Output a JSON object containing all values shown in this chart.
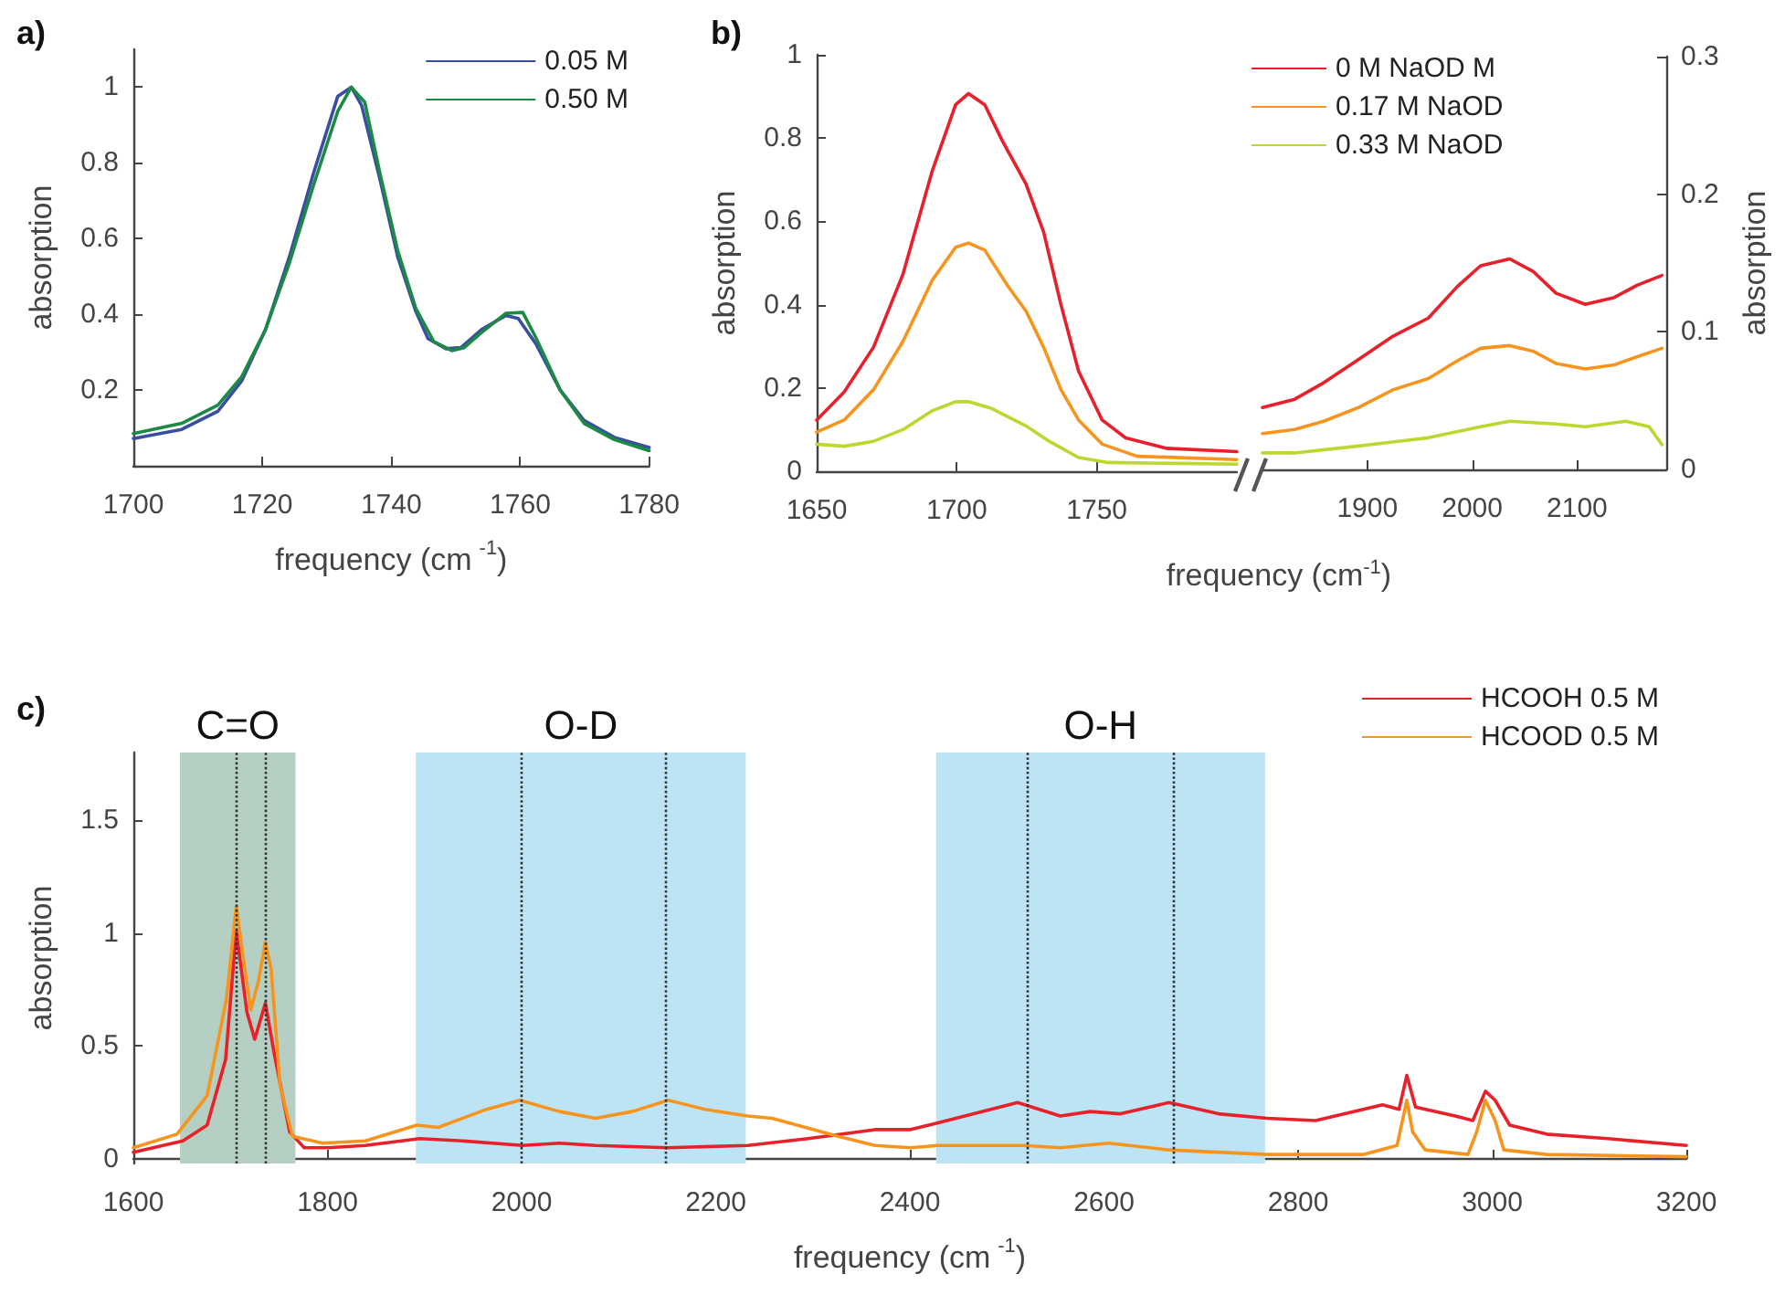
{
  "chart_data": [
    {
      "type": "line",
      "title": "a)",
      "xlabel": "frequency (cm$^{-1}$)",
      "ylabel": "absorption",
      "xlim": [
        1700,
        1780
      ],
      "xticks": [
        1700,
        1720,
        1740,
        1760,
        1780
      ],
      "ylim": [
        0,
        1.1
      ],
      "yticks": [
        0.2,
        0.4,
        0.6,
        0.8,
        1
      ],
      "grid": false,
      "legend": "top right",
      "marker": "none",
      "line_style": "solid",
      "series": [
        {
          "name": "0.05 M",
          "color": "#3a4ea0",
          "x": [
            1700,
            1707.5,
            1713.1,
            1716.8,
            1720.5,
            1724.2,
            1728,
            1731.7,
            1733.8,
            1735.4,
            1738.2,
            1741,
            1743.8,
            1745.7,
            1748.5,
            1750.8,
            1754,
            1757.8,
            1759.7,
            1762.5,
            1766.2,
            1769.9,
            1774.6,
            1780
          ],
          "values": [
            0.072,
            0.096,
            0.144,
            0.224,
            0.36,
            0.552,
            0.776,
            0.976,
            1.0,
            0.952,
            0.76,
            0.552,
            0.408,
            0.336,
            0.309,
            0.312,
            0.36,
            0.397,
            0.389,
            0.32,
            0.2,
            0.12,
            0.075,
            0.048
          ]
        },
        {
          "name": "0.50 M",
          "color": "#1b8a43",
          "x": [
            1700,
            1707.5,
            1713.1,
            1716.8,
            1720.5,
            1724.2,
            1728,
            1731.7,
            1733.8,
            1735.9,
            1738.2,
            1741,
            1743.8,
            1746.6,
            1749.4,
            1751.3,
            1754,
            1757.8,
            1760.4,
            1762.5,
            1766.2,
            1769.9,
            1774.6,
            1780
          ],
          "values": [
            0.085,
            0.112,
            0.16,
            0.235,
            0.36,
            0.536,
            0.744,
            0.936,
            1.0,
            0.96,
            0.776,
            0.568,
            0.416,
            0.328,
            0.304,
            0.312,
            0.352,
            0.403,
            0.405,
            0.336,
            0.2,
            0.112,
            0.069,
            0.04
          ]
        }
      ]
    },
    {
      "type": "line",
      "title": "b)",
      "ylabel": "absorption",
      "xlim": [
        1650,
        1800
      ],
      "xticks": [
        1650,
        1700,
        1750
      ],
      "ylim": [
        0,
        1
      ],
      "yticks": [
        0,
        0.2,
        0.4,
        0.6,
        0.8,
        1
      ],
      "grid": false,
      "legend": false,
      "marker": "none",
      "line_style": "solid",
      "series": [
        {
          "color": "#e8202a",
          "x": [
            1650,
            1659.8,
            1670.3,
            1680.8,
            1691.2,
            1699.6,
            1704.2,
            1710,
            1716.3,
            1724.7,
            1731,
            1737.2,
            1743.5,
            1751.9,
            1760.3,
            1774.9,
            1800
          ],
          "values": [
            0.123,
            0.19,
            0.298,
            0.473,
            0.72,
            0.88,
            0.907,
            0.88,
            0.793,
            0.69,
            0.575,
            0.4,
            0.24,
            0.123,
            0.08,
            0.055,
            0.047
          ]
        },
        {
          "color": "#f7941d",
          "x": [
            1650,
            1659.8,
            1670.3,
            1680.8,
            1691.2,
            1699.6,
            1704.2,
            1710,
            1718.4,
            1724.7,
            1731,
            1737.2,
            1743.5,
            1751.9,
            1764.4,
            1800
          ],
          "values": [
            0.094,
            0.123,
            0.196,
            0.312,
            0.458,
            0.538,
            0.548,
            0.531,
            0.443,
            0.385,
            0.298,
            0.196,
            0.123,
            0.065,
            0.036,
            0.028
          ]
        },
        {
          "color": "#bed630",
          "x": [
            1650,
            1659.8,
            1670.3,
            1680.8,
            1691.2,
            1699.6,
            1704.2,
            1712,
            1724.7,
            1733,
            1743.5,
            1754,
            1800
          ],
          "values": [
            0.065,
            0.06,
            0.072,
            0.1,
            0.145,
            0.167,
            0.167,
            0.152,
            0.109,
            0.072,
            0.033,
            0.021,
            0.017
          ]
        }
      ]
    },
    {
      "type": "line",
      "xlabel": "frequency (cm$^{-1}$)",
      "y2label": "absorption",
      "xlim": [
        1800,
        2185
      ],
      "xticks": [
        1900,
        2000,
        2100
      ],
      "y2lim": [
        0,
        0.3
      ],
      "y2ticks": [
        0,
        0.1,
        0.2,
        0.3
      ],
      "grid": false,
      "legend": "top left",
      "marker": "none",
      "line_style": "solid",
      "series": [
        {
          "name": "0 M NaOD M",
          "axis": "y2",
          "color": "#e8202a",
          "x": [
            1800,
            1830.7,
            1858.4,
            1891.7,
            1924.9,
            1958.2,
            1985.9,
            2008,
            2035.7,
            2057.9,
            2080,
            2107.8,
            2135.5,
            2157.6,
            2180.9
          ],
          "values": [
            0.045,
            0.051,
            0.063,
            0.08,
            0.097,
            0.11,
            0.133,
            0.148,
            0.153,
            0.144,
            0.128,
            0.12,
            0.125,
            0.134,
            0.141
          ]
        },
        {
          "name": "0.17 M NaOD",
          "axis": "y2",
          "color": "#f7941d",
          "x": [
            1800,
            1830.7,
            1858.4,
            1891.7,
            1924.9,
            1958.2,
            1985.9,
            2008,
            2035.7,
            2057.9,
            2080,
            2107.8,
            2135.5,
            2157.6,
            2180.9
          ],
          "values": [
            0.026,
            0.029,
            0.035,
            0.045,
            0.058,
            0.066,
            0.079,
            0.088,
            0.09,
            0.086,
            0.077,
            0.073,
            0.076,
            0.082,
            0.088
          ]
        },
        {
          "name": "0.33 M NaOD",
          "axis": "y2",
          "color": "#bed630",
          "x": [
            1800,
            1830.7,
            1891.7,
            1958.2,
            2008,
            2035.7,
            2080,
            2107.8,
            2146.5,
            2168.7,
            2180.9
          ],
          "values": [
            0.012,
            0.012,
            0.017,
            0.023,
            0.031,
            0.035,
            0.033,
            0.031,
            0.035,
            0.031,
            0.018
          ]
        }
      ]
    },
    {
      "type": "line",
      "title": "c)",
      "xlabel": "frequency (cm$^{-1}$)",
      "ylabel": "absorption",
      "xlim": [
        1600,
        3200
      ],
      "xticks": [
        1600,
        1800,
        2000,
        2200,
        2400,
        2600,
        2800,
        3000,
        3200
      ],
      "ylim": [
        -0.02,
        1.8
      ],
      "yticks": [
        0,
        0.5,
        1,
        1.5
      ],
      "grid": false,
      "legend": "top right",
      "marker": "none",
      "line_style": "solid",
      "bands": [
        {
          "axis": "x",
          "from": 1648,
          "to": 1767,
          "label": "C=O",
          "color": "#b5d0c3"
        },
        {
          "axis": "x",
          "from": 1891,
          "to": 2231,
          "label": "O-D",
          "color": "#bde4f4"
        },
        {
          "axis": "x",
          "from": 2427,
          "to": 2766,
          "label": "O-H",
          "color": "#bde4f4"
        }
      ],
      "ref_lines": [
        {
          "axis": "x",
          "value": 1706,
          "line_style": "dotted",
          "color": "#333333"
        },
        {
          "axis": "x",
          "value": 1736,
          "line_style": "dotted",
          "color": "#333333"
        },
        {
          "axis": "x",
          "value": 2000,
          "line_style": "dotted",
          "color": "#333333"
        },
        {
          "axis": "x",
          "value": 2149,
          "line_style": "dotted",
          "color": "#333333"
        },
        {
          "axis": "x",
          "value": 2520,
          "line_style": "dotted",
          "color": "#333333"
        },
        {
          "axis": "x",
          "value": 2671,
          "line_style": "dotted",
          "color": "#333333"
        }
      ],
      "series": [
        {
          "name": "HCOOH 0.5 M",
          "color": "#e8202a",
          "x": [
            1600,
            1651,
            1676,
            1695,
            1706,
            1717,
            1725,
            1736,
            1745,
            1761,
            1776,
            1801,
            1839,
            1895,
            1939,
            2001,
            2039,
            2076,
            2151,
            2233,
            2295,
            2364,
            2400,
            2429,
            2511,
            2555,
            2586,
            2617,
            2667,
            2718,
            2768,
            2818,
            2887,
            2904,
            2912,
            2921,
            2962,
            2980,
            2993,
            3003,
            3018,
            3056,
            3119,
            3200
          ],
          "values": [
            0.03,
            0.08,
            0.15,
            0.44,
            1.01,
            0.65,
            0.53,
            0.69,
            0.47,
            0.12,
            0.05,
            0.05,
            0.06,
            0.09,
            0.08,
            0.06,
            0.07,
            0.06,
            0.05,
            0.06,
            0.09,
            0.13,
            0.13,
            0.16,
            0.25,
            0.19,
            0.21,
            0.2,
            0.25,
            0.2,
            0.18,
            0.17,
            0.24,
            0.22,
            0.37,
            0.23,
            0.19,
            0.17,
            0.3,
            0.26,
            0.15,
            0.11,
            0.09,
            0.06
          ]
        },
        {
          "name": "HCOOD 0.5 M",
          "color": "#f7941d",
          "x": [
            1600,
            1645,
            1676,
            1696,
            1706,
            1714,
            1721,
            1729,
            1736,
            1742,
            1751,
            1764,
            1795,
            1839,
            1892,
            1914,
            1964,
            1998,
            2039,
            2076,
            2114,
            2151,
            2189,
            2233,
            2258,
            2326,
            2364,
            2401,
            2429,
            2517,
            2555,
            2605,
            2667,
            2768,
            2868,
            2902,
            2912,
            2918,
            2931,
            2975,
            2984,
            2993,
            3003,
            3012,
            3056,
            3200
          ],
          "values": [
            0.05,
            0.11,
            0.28,
            0.71,
            1.12,
            0.87,
            0.66,
            0.79,
            0.96,
            0.84,
            0.33,
            0.1,
            0.07,
            0.08,
            0.15,
            0.14,
            0.22,
            0.26,
            0.21,
            0.18,
            0.21,
            0.26,
            0.22,
            0.19,
            0.18,
            0.1,
            0.06,
            0.05,
            0.06,
            0.06,
            0.05,
            0.07,
            0.04,
            0.02,
            0.02,
            0.06,
            0.26,
            0.12,
            0.04,
            0.02,
            0.12,
            0.26,
            0.17,
            0.04,
            0.02,
            0.01
          ]
        }
      ]
    }
  ]
}
